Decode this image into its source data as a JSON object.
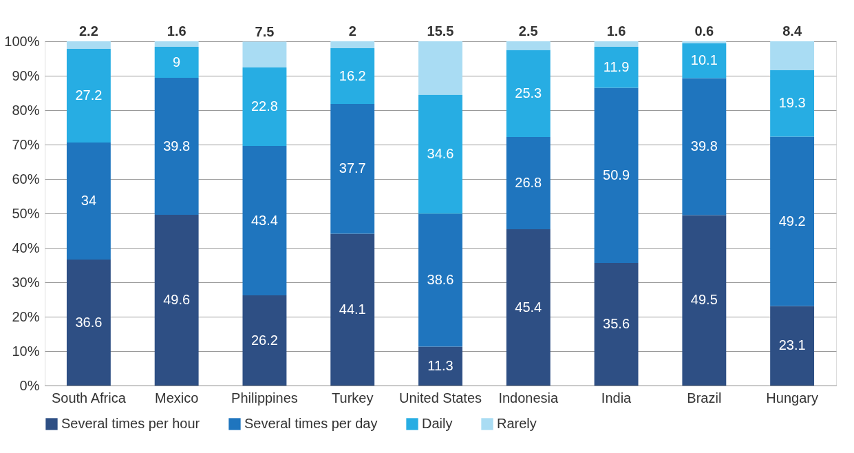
{
  "chart_data": {
    "type": "bar",
    "stacked": true,
    "categories": [
      "South Africa",
      "Mexico",
      "Philippines",
      "Turkey",
      "United States",
      "Indonesia",
      "India",
      "Brazil",
      "Hungary"
    ],
    "series": [
      {
        "name": "Several times per hour",
        "color": "#2e4f84",
        "values": [
          36.6,
          49.6,
          26.2,
          44.1,
          11.3,
          45.4,
          35.6,
          49.5,
          23.1
        ]
      },
      {
        "name": "Several times per day",
        "color": "#1f75be",
        "values": [
          34,
          39.8,
          43.4,
          37.7,
          38.6,
          26.8,
          50.9,
          39.8,
          49.2
        ]
      },
      {
        "name": "Daily",
        "color": "#27ade3",
        "values": [
          27.2,
          9,
          22.8,
          16.2,
          34.6,
          25.3,
          11.9,
          10.1,
          19.3
        ]
      },
      {
        "name": "Rarely",
        "color": "#a9dcf3",
        "values": [
          2.2,
          1.6,
          7.5,
          2,
          15.5,
          2.5,
          1.6,
          0.6,
          8.4
        ]
      }
    ],
    "ylim": [
      0,
      100
    ],
    "yticks": [
      {
        "value": 0,
        "label": "0%"
      },
      {
        "value": 10,
        "label": "10%"
      },
      {
        "value": 20,
        "label": "20%"
      },
      {
        "value": 30,
        "label": "30%"
      },
      {
        "value": 40,
        "label": "40%"
      },
      {
        "value": 50,
        "label": "50%"
      },
      {
        "value": 60,
        "label": "60%"
      },
      {
        "value": 70,
        "label": "70%"
      },
      {
        "value": 80,
        "label": "80%"
      },
      {
        "value": 90,
        "label": "90%"
      },
      {
        "value": 100,
        "label": "100%"
      }
    ],
    "grid": "y",
    "legend": "bottom",
    "data_labels": true
  }
}
